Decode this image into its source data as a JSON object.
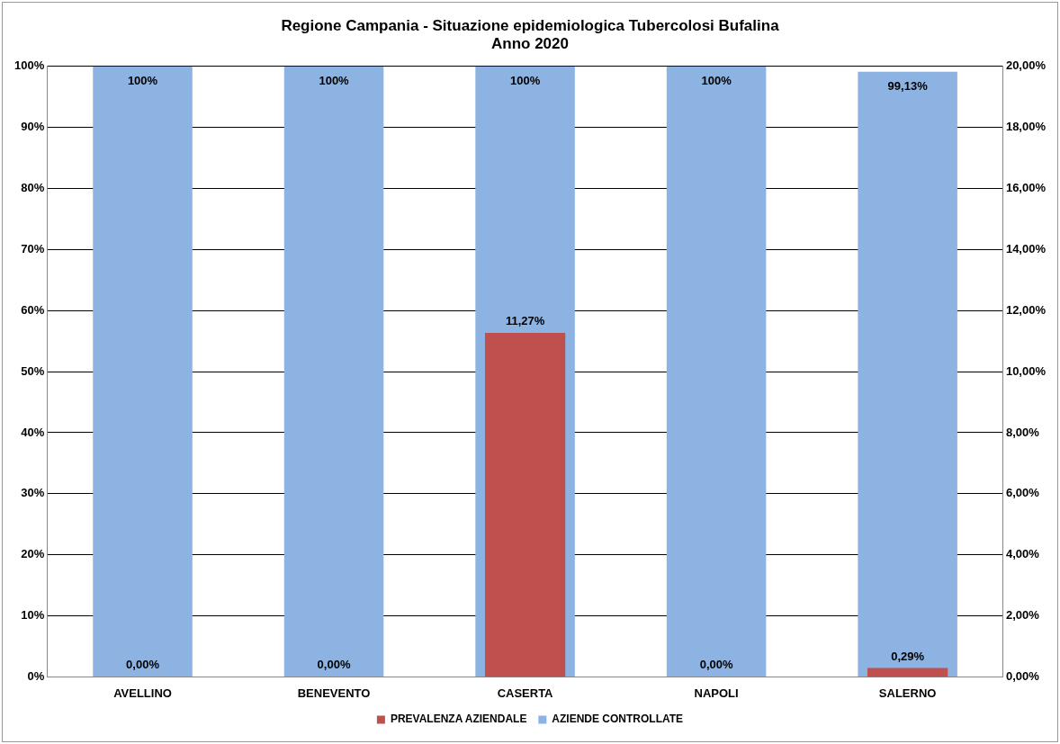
{
  "chart_data": {
    "type": "bar",
    "title": "Regione Campania - Situazione epidemiologica Tubercolosi Bufalina\nAnno 2020",
    "categories": [
      "AVELLINO",
      "BENEVENTO",
      "CASERTA",
      "NAPOLI",
      "SALERNO"
    ],
    "series": [
      {
        "name": "AZIENDE CONTROLLATE",
        "color": "#8db3e2",
        "values": [
          100,
          100,
          100,
          100,
          99.13
        ],
        "value_labels": [
          "100%",
          "100%",
          "100%",
          "100%",
          "99,13%"
        ]
      },
      {
        "name": "PREVALENZA AZIENDALE",
        "color": "#c0504d",
        "axis": "y2",
        "values": [
          0,
          0,
          11.27,
          0,
          0.29
        ],
        "value_labels": [
          "0,00%",
          "0,00%",
          "11,27%",
          "0,00%",
          "0,29%"
        ]
      }
    ],
    "ylim": [
      0,
      100
    ],
    "yticks": [
      {
        "value": 0,
        "label": "0%"
      },
      {
        "value": 10,
        "label": "10%"
      },
      {
        "value": 20,
        "label": "20%"
      },
      {
        "value": 30,
        "label": "30%"
      },
      {
        "value": 40,
        "label": "40%"
      },
      {
        "value": 50,
        "label": "50%"
      },
      {
        "value": 60,
        "label": "60%"
      },
      {
        "value": 70,
        "label": "70%"
      },
      {
        "value": 80,
        "label": "80%"
      },
      {
        "value": 90,
        "label": "90%"
      },
      {
        "value": 100,
        "label": "100%"
      }
    ],
    "y2lim": [
      0,
      20
    ],
    "y2ticks": [
      {
        "value": 0,
        "label": "0,00%"
      },
      {
        "value": 2,
        "label": "2,00%"
      },
      {
        "value": 4,
        "label": "4,00%"
      },
      {
        "value": 6,
        "label": "6,00%"
      },
      {
        "value": 8,
        "label": "8,00%"
      },
      {
        "value": 10,
        "label": "10,00%"
      },
      {
        "value": 12,
        "label": "12,00%"
      },
      {
        "value": 14,
        "label": "14,00%"
      },
      {
        "value": 16,
        "label": "16,00%"
      },
      {
        "value": 18,
        "label": "18,00%"
      },
      {
        "value": 20,
        "label": "20,00%"
      }
    ],
    "grid": "y",
    "legend": "bottom"
  }
}
